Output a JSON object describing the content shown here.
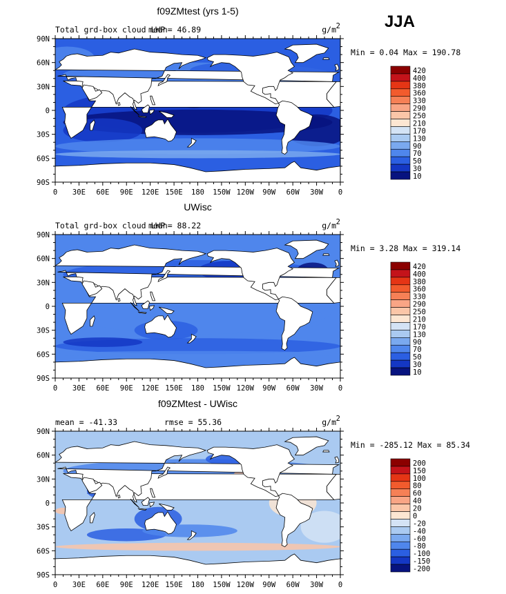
{
  "season": "JJA",
  "panels": [
    {
      "title": "f09ZMtest (yrs 1-5)",
      "left_label": "Total grd-box cloud LWP",
      "stat1": "mean=  46.89",
      "stat2": "",
      "units_base": "g/m",
      "units_exp": "2",
      "minmax": "Min =   0.04 Max = 190.78",
      "palette": "seq",
      "levels": [
        "420",
        "400",
        "380",
        "360",
        "330",
        "290",
        "250",
        "210",
        "170",
        "130",
        "90",
        "70",
        "50",
        "30",
        "10"
      ]
    },
    {
      "title": "UWisc",
      "left_label": "Total grd-box cloud LWP",
      "stat1": "mean=  88.22",
      "stat2": "",
      "units_base": "g/m",
      "units_exp": "2",
      "minmax": "Min =   3.28 Max = 319.14",
      "palette": "seq",
      "levels": [
        "420",
        "400",
        "380",
        "360",
        "330",
        "290",
        "250",
        "210",
        "170",
        "130",
        "90",
        "70",
        "50",
        "30",
        "10"
      ]
    },
    {
      "title": "f09ZMtest - UWisc",
      "left_label": "mean = -41.33",
      "stat1": "",
      "stat2": "rmse =  55.36",
      "units_base": "g/m",
      "units_exp": "2",
      "minmax": "Min = -285.12 Max =  85.34",
      "palette": "div",
      "levels": [
        "200",
        "150",
        "100",
        "80",
        "60",
        "40",
        "20",
        "0",
        "-20",
        "-40",
        "-60",
        "-80",
        "-100",
        "-150",
        "-200"
      ]
    }
  ],
  "lat_ticks": [
    "90N",
    "60N",
    "30N",
    "0",
    "30S",
    "60S",
    "90S"
  ],
  "lon_ticks": [
    "0",
    "30E",
    "60E",
    "90E",
    "120E",
    "150E",
    "180",
    "150W",
    "120W",
    "90W",
    "60W",
    "30W",
    "0"
  ],
  "colors": {
    "seq": [
      "#8b0000",
      "#c4131a",
      "#e53515",
      "#f25b2d",
      "#f68056",
      "#f9a585",
      "#fbc6a8",
      "#fde6d2",
      "#d4e3f5",
      "#aacaf1",
      "#7aa9ef",
      "#4f86ec",
      "#2b5fe2",
      "#1437c4",
      "#07137f"
    ],
    "div": [
      "#8b0000",
      "#c4131a",
      "#e53515",
      "#f25b2d",
      "#f68056",
      "#f9a585",
      "#fbc6a8",
      "#fde6d2",
      "#d4e3f5",
      "#aacaf1",
      "#7aa9ef",
      "#4f86ec",
      "#2b5fe2",
      "#1437c4",
      "#07137f"
    ]
  }
}
